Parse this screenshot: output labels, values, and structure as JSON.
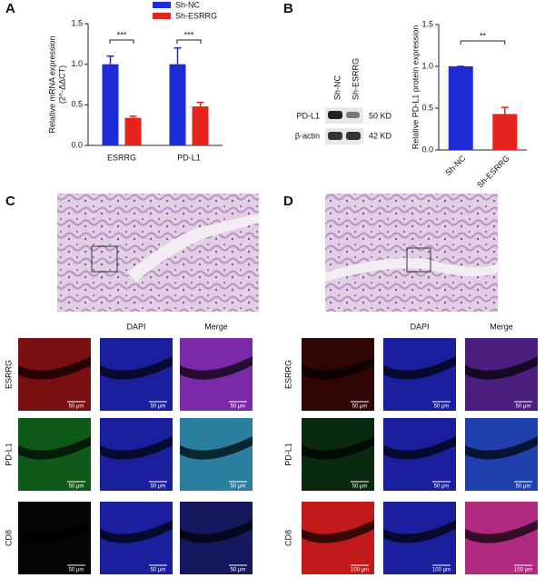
{
  "panel_labels": [
    "A",
    "B",
    "C",
    "D"
  ],
  "chart_data": [
    {
      "type": "bar",
      "ylabel": [
        "Relative mRNA expression",
        "(2^-ΔΔCT)"
      ],
      "categories": [
        "ESRRG",
        "PD-L1"
      ],
      "series": [
        {
          "name": "Sh-NC",
          "color": "#1f2bd6",
          "values": [
            1.0,
            1.0
          ],
          "errors": [
            0.1,
            0.2
          ]
        },
        {
          "name": "Sh-ESRRG",
          "color": "#e5231f",
          "values": [
            0.34,
            0.48
          ],
          "errors": [
            0.02,
            0.05
          ]
        }
      ],
      "ylim": [
        0,
        1.5
      ],
      "yticks": [
        {
          "value": 0,
          "label": "0.0"
        },
        {
          "value": 0.5,
          "label": "0.5"
        },
        {
          "value": 1,
          "label": "1.0"
        },
        {
          "value": 1.5,
          "label": "1.5"
        }
      ],
      "annotations": [
        "***",
        "***"
      ],
      "grid": false
    },
    {
      "type": "bar",
      "ylabel": [
        "Relative PD-L1 protein expression"
      ],
      "categories": [
        "Sh-NC",
        "Sh-ESRRG"
      ],
      "values": [
        1.0,
        0.43
      ],
      "errors": [
        0,
        0.08
      ],
      "colors": [
        "#1f2bd6",
        "#e5231f"
      ],
      "ylim": [
        0,
        1.5
      ],
      "yticks": [
        {
          "value": 0,
          "label": "0.0"
        },
        {
          "value": 0.5,
          "label": "0.5"
        },
        {
          "value": 1,
          "label": "1.0"
        },
        {
          "value": 1.5,
          "label": "1.5"
        }
      ],
      "annotations": [
        "**"
      ],
      "grid": false
    }
  ],
  "western_blot": {
    "lanes": [
      "Sh-NC",
      "Sh-ESRRG"
    ],
    "rows": [
      {
        "protein": "PD-L1",
        "size": "50 KD"
      },
      {
        "protein": "β-actin",
        "size": "42 KD"
      }
    ]
  },
  "if_panels": [
    {
      "columns": [
        "DAPI",
        "Merge"
      ],
      "rows": [
        "ESRRG",
        "PD-L1",
        "CD8"
      ],
      "scale_bars": [
        [
          "50 μm",
          "50 μm",
          "50 μm"
        ],
        [
          "50 μm",
          "50 μm",
          "50 μm"
        ],
        [
          "50 μm",
          "50 μm",
          "50 μm"
        ]
      ]
    },
    {
      "columns": [
        "DAPI",
        "Merge"
      ],
      "rows": [
        "ESRRG",
        "PD-L1",
        "CD8"
      ],
      "scale_bars": [
        [
          "50 μm",
          "50 μm",
          "50 μm"
        ],
        [
          "50 μm",
          "50 μm",
          "50 μm"
        ],
        [
          "100 μm",
          "100 μm",
          "100 μm"
        ]
      ]
    }
  ]
}
